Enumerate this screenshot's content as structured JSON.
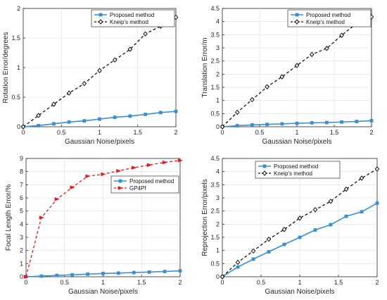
{
  "colors": {
    "proposed": "#3a8fd0",
    "kneip": "#111111",
    "gp4pf": "#e8191a",
    "grid": "#dcdcdc"
  },
  "chart_data": [
    {
      "type": "line",
      "xlabel": "Gaussian Noise/pixels",
      "ylabel": "Rotation Error/degrees",
      "xlim": [
        0,
        2
      ],
      "ylim": [
        0,
        2
      ],
      "xticks": [
        0,
        0.5,
        1,
        1.5,
        2
      ],
      "yticks": [
        0,
        0.5,
        1,
        1.5,
        2
      ],
      "xtick_labels": [
        "0",
        "0.5",
        "1",
        "1.5",
        "2"
      ],
      "ytick_labels": [
        "0",
        "0.5",
        "1",
        "1.5",
        "2"
      ],
      "grid": true,
      "legend": "top-right",
      "x": [
        0,
        0.2,
        0.4,
        0.6,
        0.8,
        1.0,
        1.2,
        1.4,
        1.6,
        1.8,
        2.0
      ],
      "series": [
        {
          "name": "Proposed method",
          "style": "solid-square",
          "color": "#3a8fd0",
          "values": [
            0,
            0.02,
            0.05,
            0.08,
            0.1,
            0.13,
            0.16,
            0.18,
            0.21,
            0.24,
            0.26
          ]
        },
        {
          "name": "Kneip's method",
          "style": "dashed-diamond",
          "color": "#111111",
          "values": [
            0,
            0.19,
            0.38,
            0.57,
            0.73,
            0.95,
            1.13,
            1.31,
            1.57,
            1.7,
            1.85
          ]
        }
      ]
    },
    {
      "type": "line",
      "xlabel": "Gaussian Noise/pixels",
      "ylabel": "Translation Error/m",
      "xlim": [
        0,
        2
      ],
      "ylim": [
        0,
        4.5
      ],
      "xticks": [
        0,
        0.5,
        1,
        1.5,
        2
      ],
      "yticks": [
        0,
        0.5,
        1,
        1.5,
        2,
        2.5,
        3,
        3.5,
        4,
        4.5
      ],
      "xtick_labels": [
        "0",
        "0.5",
        "1",
        "1.5",
        "2"
      ],
      "ytick_labels": [
        "0",
        "0.5",
        "1",
        "1.5",
        "2",
        "2.5",
        "3",
        "3.5",
        "4",
        "4.5"
      ],
      "grid": true,
      "legend": "top-right",
      "x": [
        0,
        0.2,
        0.4,
        0.6,
        0.8,
        1.0,
        1.2,
        1.4,
        1.6,
        1.8,
        2.0
      ],
      "series": [
        {
          "name": "Proposed method",
          "style": "solid-square",
          "color": "#3a8fd0",
          "values": [
            0,
            0.04,
            0.07,
            0.09,
            0.11,
            0.13,
            0.15,
            0.16,
            0.18,
            0.2,
            0.23
          ]
        },
        {
          "name": "Kneip's method",
          "style": "dashed-diamond",
          "color": "#111111",
          "values": [
            0,
            0.55,
            1.03,
            1.52,
            1.9,
            2.33,
            2.75,
            2.98,
            3.48,
            3.93,
            4.18
          ]
        }
      ]
    },
    {
      "type": "line",
      "xlabel": "Gaussian Noise/pixels",
      "ylabel": "Focal Length Error/%",
      "xlim": [
        0,
        2
      ],
      "ylim": [
        0,
        9
      ],
      "xticks": [
        0,
        0.5,
        1,
        1.5,
        2
      ],
      "yticks": [
        0,
        1,
        2,
        3,
        4,
        5,
        6,
        7,
        8,
        9
      ],
      "xtick_labels": [
        "0",
        "0.5",
        "1",
        "1.5",
        "2"
      ],
      "ytick_labels": [
        "0",
        "1",
        "2",
        "3",
        "4",
        "5",
        "6",
        "7",
        "8",
        "9"
      ],
      "grid": true,
      "legend": "top-right",
      "x": [
        0,
        0.2,
        0.4,
        0.6,
        0.8,
        1.0,
        1.2,
        1.4,
        1.6,
        1.8,
        2.0
      ],
      "series": [
        {
          "name": "Proposed method",
          "style": "solid-square",
          "color": "#3a8fd0",
          "values": [
            0,
            0.05,
            0.1,
            0.15,
            0.2,
            0.25,
            0.28,
            0.32,
            0.36,
            0.4,
            0.45
          ]
        },
        {
          "name": "GP4Pf",
          "style": "dashed-triangle",
          "color": "#e8191a",
          "values": [
            0,
            4.5,
            5.9,
            6.8,
            7.65,
            7.8,
            8.05,
            8.3,
            8.5,
            8.7,
            8.85
          ]
        }
      ]
    },
    {
      "type": "line",
      "xlabel": "Gaussian Noise/pixels",
      "ylabel": "Reprojection Error/pixels",
      "xlim": [
        0,
        2
      ],
      "ylim": [
        0,
        4.5
      ],
      "xticks": [
        0,
        0.5,
        1,
        1.5,
        2
      ],
      "yticks": [
        0,
        0.5,
        1,
        1.5,
        2,
        2.5,
        3,
        3.5,
        4,
        4.5
      ],
      "xtick_labels": [
        "0",
        "0.5",
        "1",
        "1.5",
        "2"
      ],
      "ytick_labels": [
        "0",
        "0.5",
        "1",
        "1.5",
        "2",
        "2.5",
        "3",
        "3.5",
        "4",
        "4.5"
      ],
      "grid": true,
      "legend": "top-left",
      "x": [
        0,
        0.2,
        0.4,
        0.6,
        0.8,
        1.0,
        1.2,
        1.4,
        1.6,
        1.8,
        2.0
      ],
      "series": [
        {
          "name": "Proposed method",
          "style": "solid-square",
          "color": "#3a8fd0",
          "values": [
            0,
            0.37,
            0.67,
            0.95,
            1.23,
            1.5,
            1.78,
            1.98,
            2.3,
            2.47,
            2.8
          ]
        },
        {
          "name": "Kneip's method",
          "style": "dashed-diamond",
          "color": "#111111",
          "values": [
            0,
            0.55,
            0.98,
            1.43,
            1.8,
            2.23,
            2.55,
            2.87,
            3.33,
            3.75,
            4.1
          ]
        }
      ]
    }
  ]
}
